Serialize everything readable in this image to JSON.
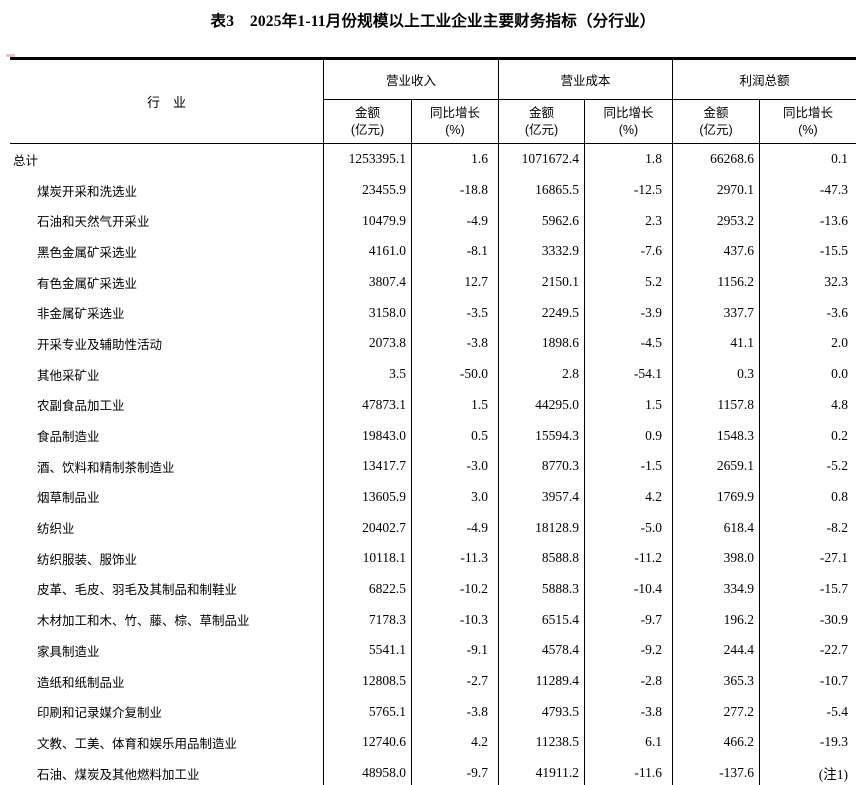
{
  "page": {
    "title": "表3　2025年1-11月份规模以上工业企业主要财务指标（分行业）"
  },
  "table": {
    "industry_header": "行　业",
    "groups": [
      {
        "label": "营业收入",
        "amount_line1": "金额",
        "amount_line2": "(亿元)",
        "growth_line1": "同比增长",
        "growth_line2": "(%)"
      },
      {
        "label": "营业成本",
        "amount_line1": "金额",
        "amount_line2": "(亿元)",
        "growth_line1": "同比增长",
        "growth_line2": "(%)"
      },
      {
        "label": "利润总额",
        "amount_line1": "金额",
        "amount_line2": "(亿元)",
        "growth_line1": "同比增长",
        "growth_line2": "(%)"
      }
    ],
    "rows": [
      {
        "label": "总计",
        "total": true,
        "values": [
          "1253395.1",
          "1.6",
          "1071672.4",
          "1.8",
          "66268.6",
          "0.1"
        ]
      },
      {
        "label": "煤炭开采和洗选业",
        "total": false,
        "values": [
          "23455.9",
          "-18.8",
          "16865.5",
          "-12.5",
          "2970.1",
          "-47.3"
        ]
      },
      {
        "label": "石油和天然气开采业",
        "total": false,
        "values": [
          "10479.9",
          "-4.9",
          "5962.6",
          "2.3",
          "2953.2",
          "-13.6"
        ]
      },
      {
        "label": "黑色金属矿采选业",
        "total": false,
        "values": [
          "4161.0",
          "-8.1",
          "3332.9",
          "-7.6",
          "437.6",
          "-15.5"
        ]
      },
      {
        "label": "有色金属矿采选业",
        "total": false,
        "values": [
          "3807.4",
          "12.7",
          "2150.1",
          "5.2",
          "1156.2",
          "32.3"
        ]
      },
      {
        "label": "非金属矿采选业",
        "total": false,
        "values": [
          "3158.0",
          "-3.5",
          "2249.5",
          "-3.9",
          "337.7",
          "-3.6"
        ]
      },
      {
        "label": "开采专业及辅助性活动",
        "total": false,
        "values": [
          "2073.8",
          "-3.8",
          "1898.6",
          "-4.5",
          "41.1",
          "2.0"
        ]
      },
      {
        "label": "其他采矿业",
        "total": false,
        "values": [
          "3.5",
          "-50.0",
          "2.8",
          "-54.1",
          "0.3",
          "0.0"
        ]
      },
      {
        "label": "农副食品加工业",
        "total": false,
        "values": [
          "47873.1",
          "1.5",
          "44295.0",
          "1.5",
          "1157.8",
          "4.8"
        ]
      },
      {
        "label": "食品制造业",
        "total": false,
        "values": [
          "19843.0",
          "0.5",
          "15594.3",
          "0.9",
          "1548.3",
          "0.2"
        ]
      },
      {
        "label": "酒、饮料和精制茶制造业",
        "total": false,
        "values": [
          "13417.7",
          "-3.0",
          "8770.3",
          "-1.5",
          "2659.1",
          "-5.2"
        ]
      },
      {
        "label": "烟草制品业",
        "total": false,
        "values": [
          "13605.9",
          "3.0",
          "3957.4",
          "4.2",
          "1769.9",
          "0.8"
        ]
      },
      {
        "label": "纺织业",
        "total": false,
        "values": [
          "20402.7",
          "-4.9",
          "18128.9",
          "-5.0",
          "618.4",
          "-8.2"
        ]
      },
      {
        "label": "纺织服装、服饰业",
        "total": false,
        "values": [
          "10118.1",
          "-11.3",
          "8588.8",
          "-11.2",
          "398.0",
          "-27.1"
        ]
      },
      {
        "label": "皮革、毛皮、羽毛及其制品和制鞋业",
        "total": false,
        "values": [
          "6822.5",
          "-10.2",
          "5888.3",
          "-10.4",
          "334.9",
          "-15.7"
        ]
      },
      {
        "label": "木材加工和木、竹、藤、棕、草制品业",
        "total": false,
        "values": [
          "7178.3",
          "-10.3",
          "6515.4",
          "-9.7",
          "196.2",
          "-30.9"
        ]
      },
      {
        "label": "家具制造业",
        "total": false,
        "values": [
          "5541.1",
          "-9.1",
          "4578.4",
          "-9.2",
          "244.4",
          "-22.7"
        ]
      },
      {
        "label": "造纸和纸制品业",
        "total": false,
        "values": [
          "12808.5",
          "-2.7",
          "11289.4",
          "-2.8",
          "365.3",
          "-10.7"
        ]
      },
      {
        "label": "印刷和记录媒介复制业",
        "total": false,
        "values": [
          "5765.1",
          "-3.8",
          "4793.5",
          "-3.8",
          "277.2",
          "-5.4"
        ]
      },
      {
        "label": "文教、工美、体育和娱乐用品制造业",
        "total": false,
        "values": [
          "12740.6",
          "4.2",
          "11238.5",
          "6.1",
          "466.2",
          "-19.3"
        ]
      },
      {
        "label": "石油、煤炭及其他燃料加工业",
        "total": false,
        "values": [
          "48958.0",
          "-9.7",
          "41911.2",
          "-11.6",
          "-137.6",
          "(注1)"
        ]
      }
    ]
  }
}
